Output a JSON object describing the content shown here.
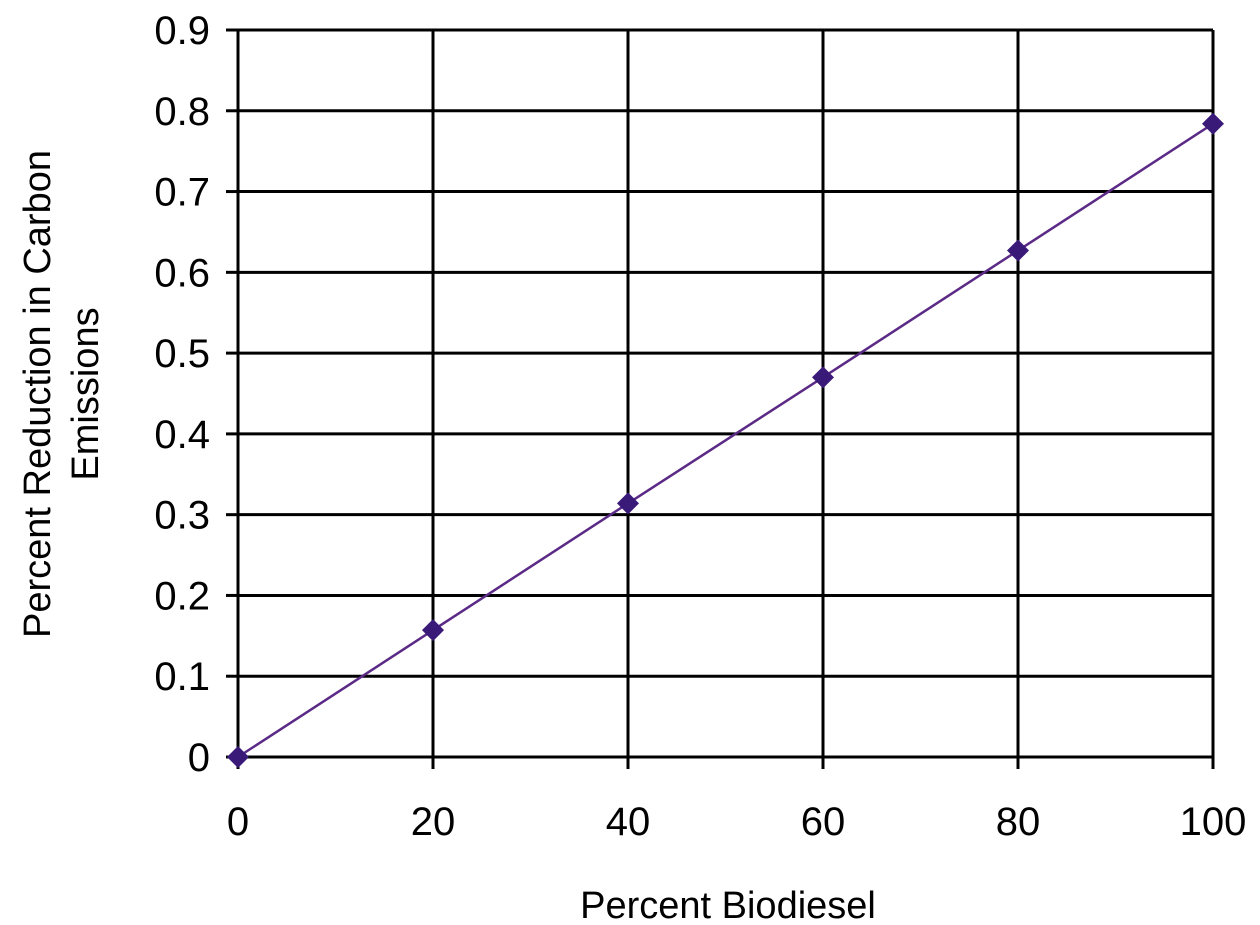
{
  "chart_data": {
    "type": "line",
    "title": "",
    "xlabel": "Percent Biodiesel",
    "ylabel_line1": "Percent Reduction in Carbon",
    "ylabel_line2": "Emissions",
    "x": [
      0,
      20,
      40,
      60,
      80,
      100
    ],
    "series": [
      {
        "values": [
          0,
          0.157,
          0.314,
          0.47,
          0.627,
          0.784
        ],
        "color": "#5b2a86"
      }
    ],
    "x_ticks": [
      0,
      20,
      40,
      60,
      80,
      100
    ],
    "x_tick_labels": [
      "0",
      "20",
      "40",
      "60",
      "80",
      "100"
    ],
    "y_ticks": [
      0,
      0.1,
      0.2,
      0.3,
      0.4,
      0.5,
      0.6,
      0.7,
      0.8,
      0.9
    ],
    "y_tick_labels": [
      "0",
      "0.1",
      "0.2",
      "0.3",
      "0.4",
      "0.5",
      "0.6",
      "0.7",
      "0.8",
      "0.9"
    ],
    "xlim": [
      0,
      100
    ],
    "ylim": [
      0,
      0.9
    ],
    "grid": true,
    "legend": "none",
    "marker": "diamond",
    "gridline_color": "#000000",
    "marker_color": "#3a1a78"
  }
}
